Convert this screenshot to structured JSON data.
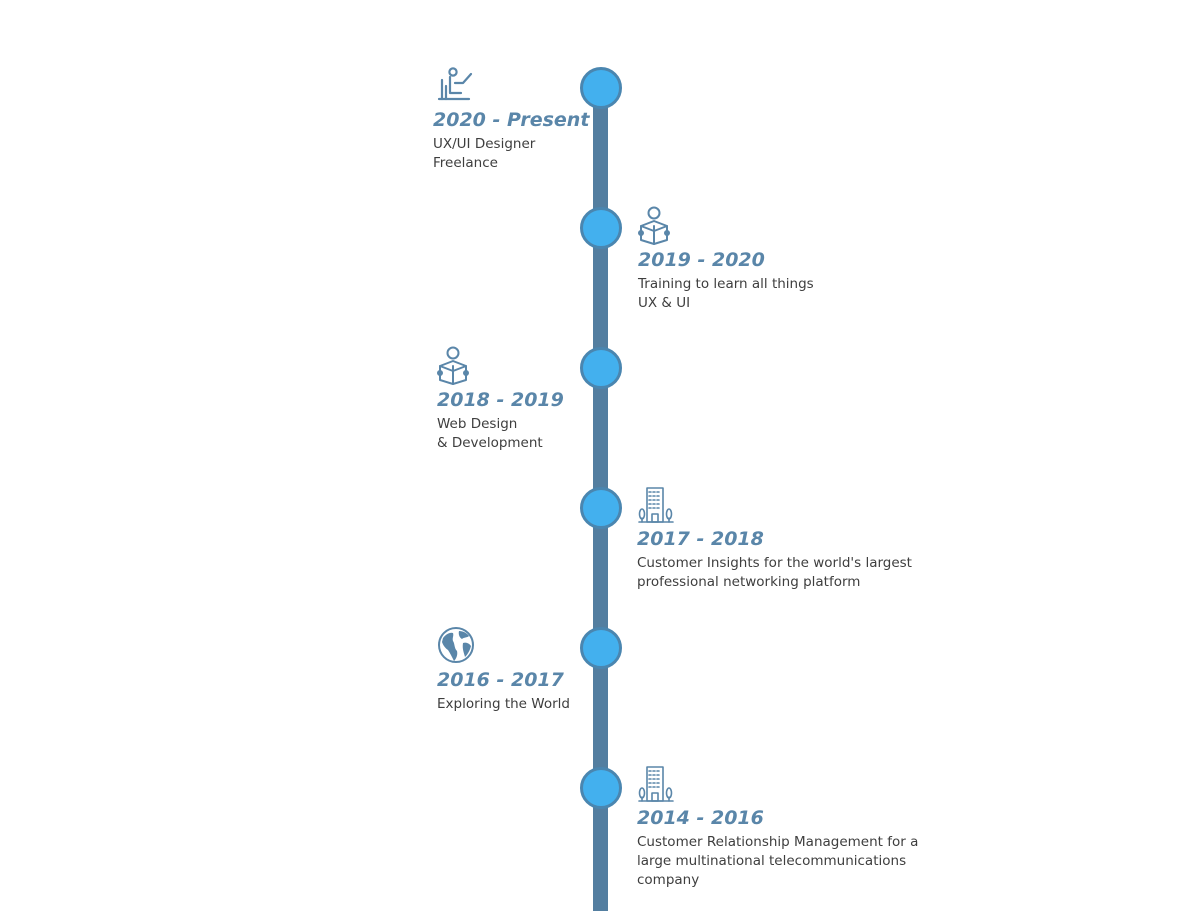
{
  "colors": {
    "rail": "#537ea0",
    "node_fill": "#43b0ee",
    "node_border": "#4a86b0",
    "period_text": "#5a86a9",
    "icon_stroke": "#5a86a9",
    "description_text": "#3e3e3e"
  },
  "timeline": {
    "entries": [
      {
        "period": "2020 - Present",
        "description": "UX/UI Designer\nFreelance",
        "icon": "person-at-laptop-icon",
        "side": "left"
      },
      {
        "period": "2019 - 2020",
        "description": "Training to learn all things\nUX & UI",
        "icon": "person-reading-icon",
        "side": "right"
      },
      {
        "period": "2018 - 2019",
        "description": "Web Design\n& Development",
        "icon": "person-reading-icon",
        "side": "left"
      },
      {
        "period": "2017 - 2018",
        "description": "Customer Insights for the world's largest\nprofessional networking platform",
        "icon": "office-building-icon",
        "side": "right"
      },
      {
        "period": "2016 - 2017",
        "description": "Exploring the World",
        "icon": "globe-icon",
        "side": "left"
      },
      {
        "period": "2014 - 2016",
        "description": "Customer Relationship Management for a\nlarge multinational telecommunications\ncompany",
        "icon": "office-building-icon",
        "side": "right"
      }
    ]
  }
}
